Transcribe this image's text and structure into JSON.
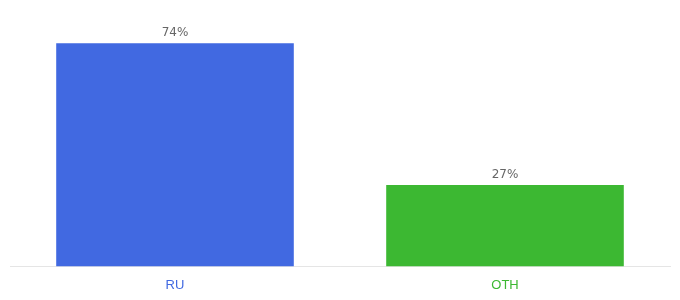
{
  "chart_data": {
    "type": "bar",
    "categories": [
      "RU",
      "OTH"
    ],
    "values": [
      74,
      27
    ],
    "value_labels": [
      "74%",
      "27%"
    ],
    "colors": [
      "#4169e1",
      "#3cb832"
    ],
    "ylim": [
      0,
      85
    ],
    "grid": false,
    "data_labels": true,
    "tick_labels": "x"
  }
}
